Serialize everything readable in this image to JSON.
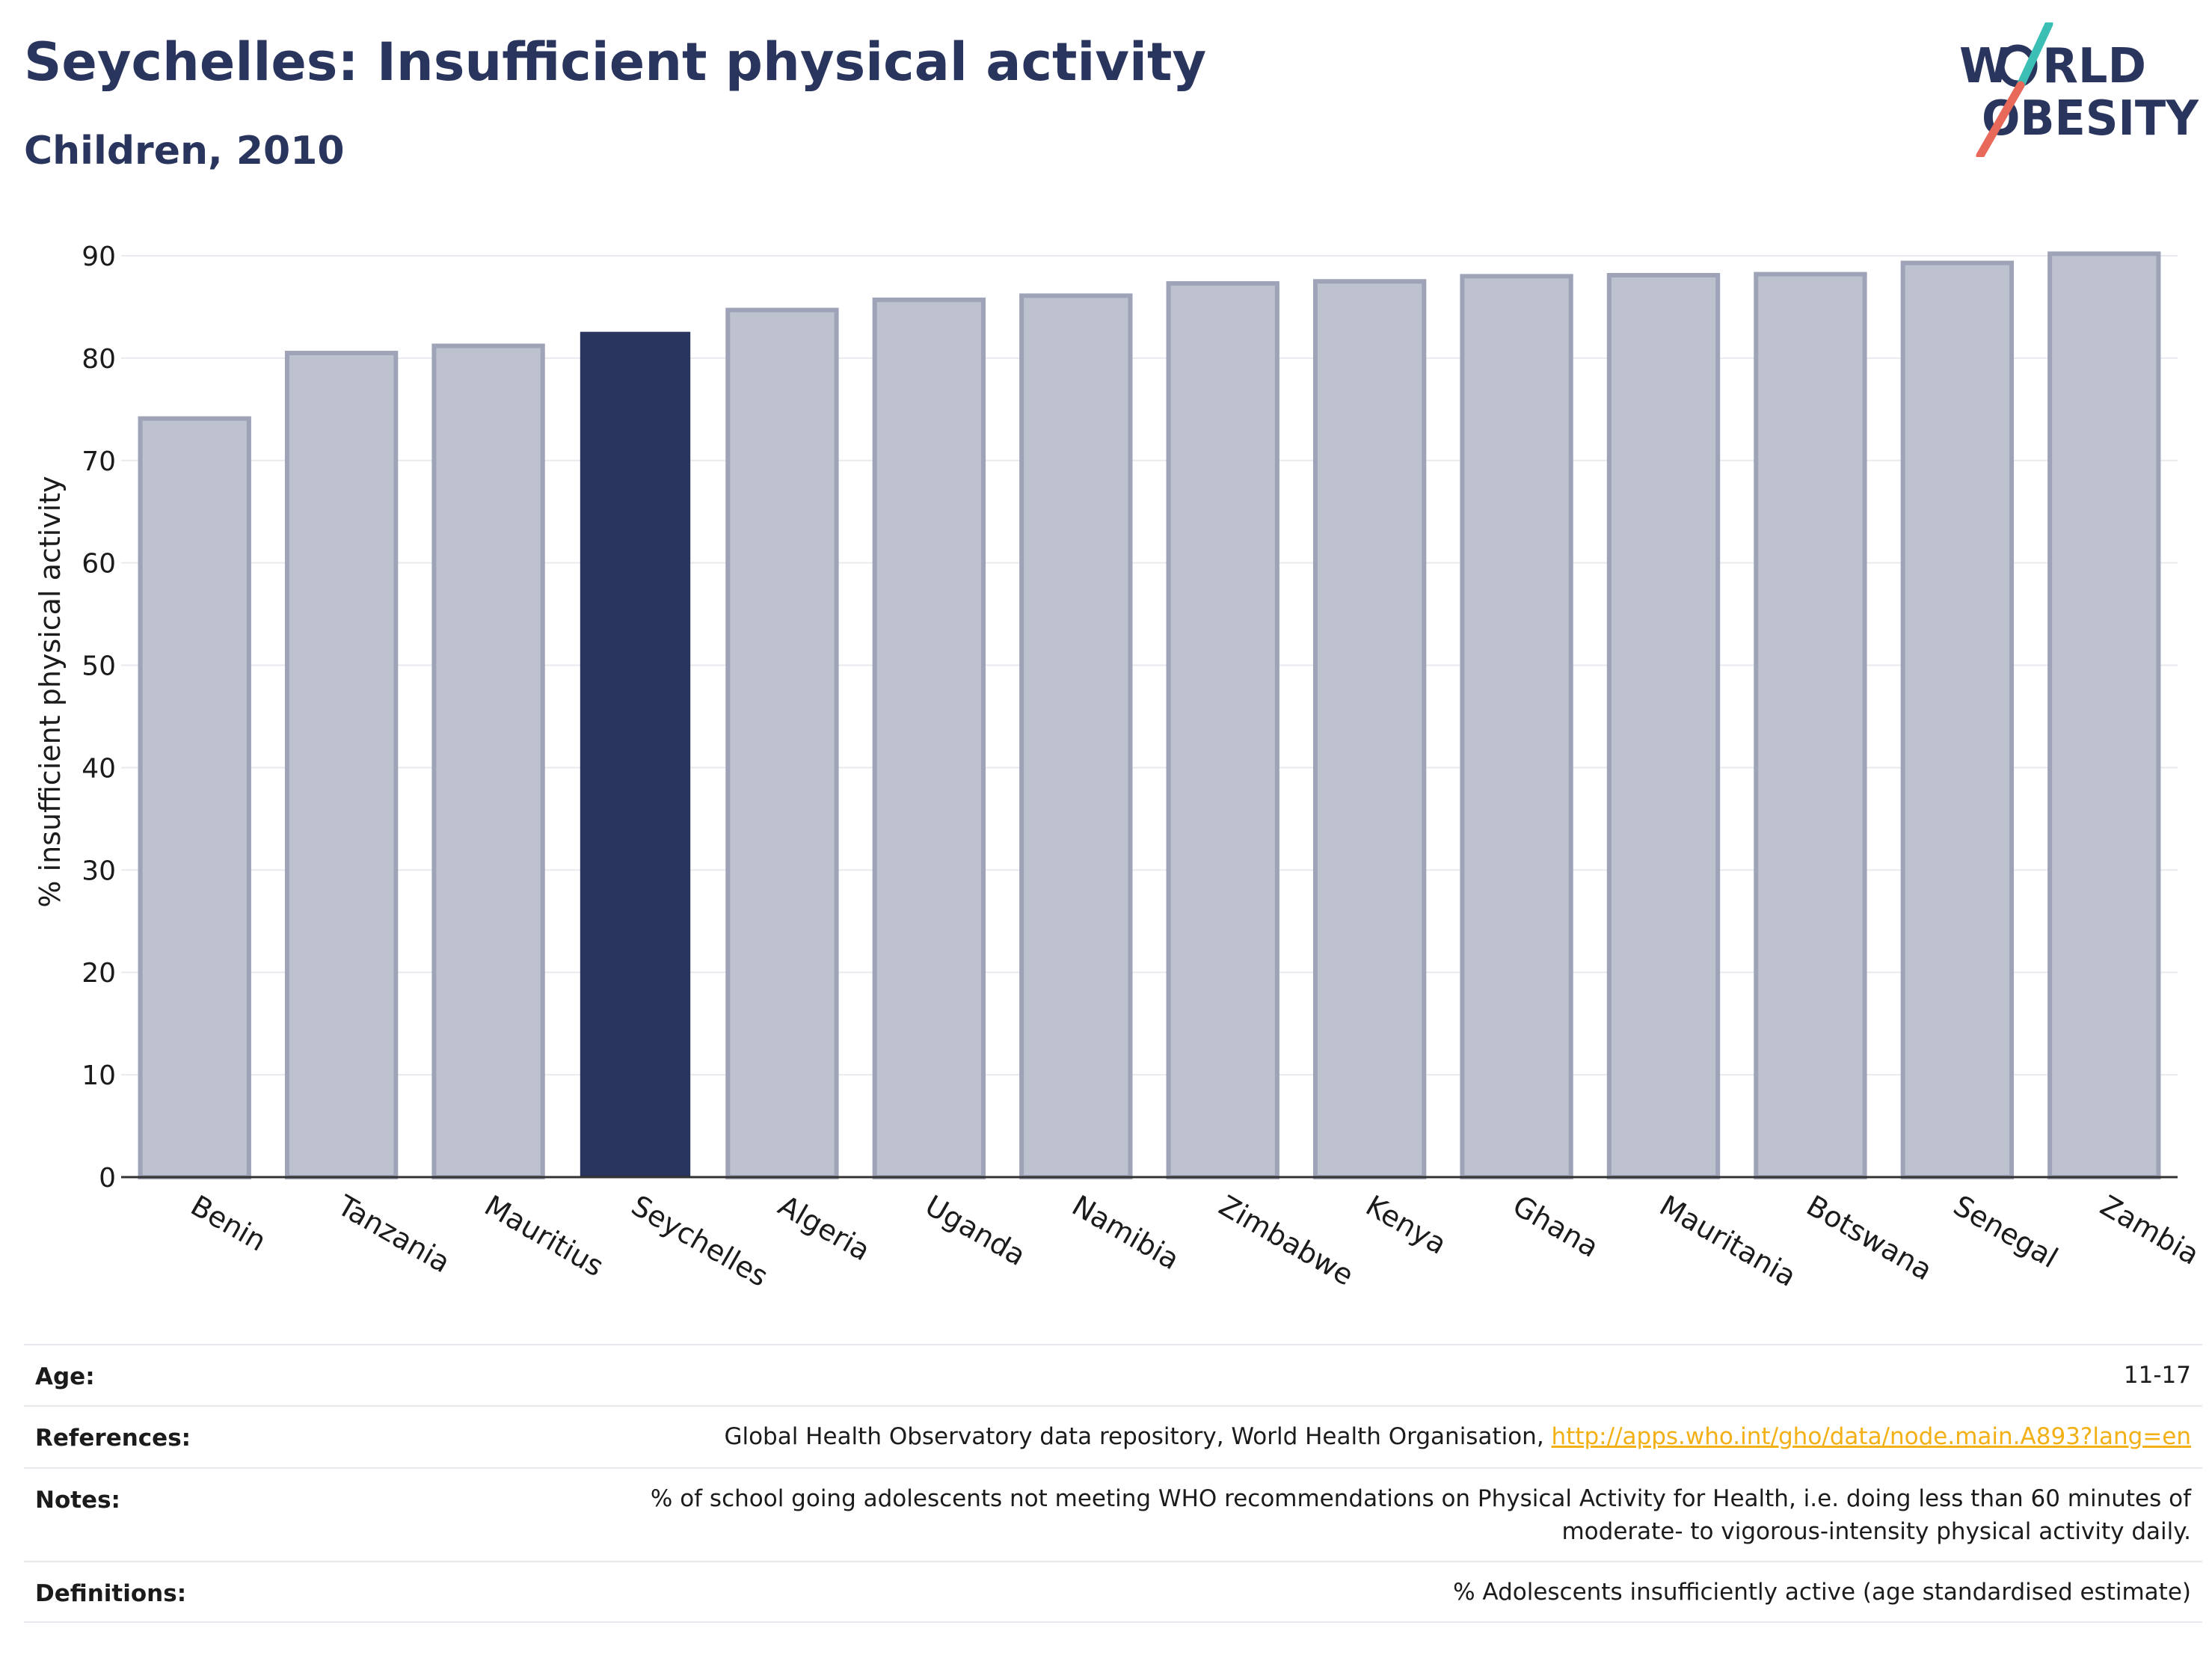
{
  "header": {
    "title": "Seychelles: Insufficient physical activity",
    "subtitle": "Children, 2010"
  },
  "logo": {
    "line1_a": "W",
    "line1_b": "RLD",
    "line2_a": "O",
    "line2_b": "BESITY",
    "colors": {
      "text": "#2a355e",
      "slash_top": "#3bbfb4",
      "slash_bottom": "#e8685a"
    }
  },
  "colors": {
    "highlight": "#2a355e",
    "bar_fill": "#bec1ce",
    "bar_stroke": "#9ea3b8",
    "grid": "#e9eaef",
    "axis": "#333333"
  },
  "chart_data": {
    "type": "bar",
    "title": "Seychelles: Insufficient physical activity",
    "subtitle": "Children, 2010",
    "xlabel": "",
    "ylabel": "% insufficient physical activity",
    "ylim": [
      0,
      90
    ],
    "yticks": [
      0,
      10,
      20,
      30,
      40,
      50,
      60,
      70,
      80,
      90
    ],
    "grid": true,
    "highlight": "Seychelles",
    "categories": [
      "Benin",
      "Tanzania",
      "Mauritius",
      "Seychelles",
      "Algeria",
      "Uganda",
      "Namibia",
      "Zimbabwe",
      "Kenya",
      "Ghana",
      "Mauritania",
      "Botswana",
      "Senegal",
      "Zambia"
    ],
    "values": [
      74.1,
      80.5,
      81.2,
      82.5,
      84.7,
      85.7,
      86.1,
      87.3,
      87.5,
      88.0,
      88.1,
      88.2,
      89.3,
      90.2
    ]
  },
  "info": {
    "age_label": "Age:",
    "age_value": "11-17",
    "references_label": "References:",
    "references_text": "Global Health Observatory data repository, World Health Organisation, ",
    "references_link": "http://apps.who.int/gho/data/node.main.A893?lang=en",
    "notes_label": "Notes:",
    "notes_line1": "% of school going adolescents not meeting WHO recommendations on Physical Activity for Health, i.e. doing less than 60 minutes of",
    "notes_line2": "moderate- to vigorous-intensity physical activity daily.",
    "definitions_label": "Definitions:",
    "definitions_value": "% Adolescents insufficiently active (age standardised estimate)"
  }
}
